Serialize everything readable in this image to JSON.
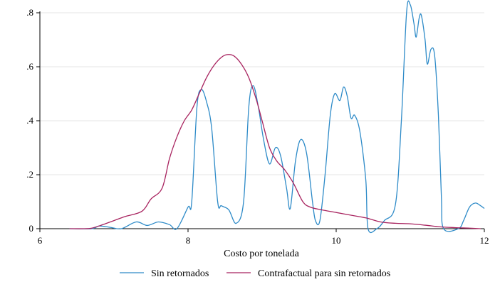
{
  "chart_data": {
    "type": "line",
    "title": "",
    "xlabel": "Costo por tonelada",
    "ylabel": "",
    "xlim": [
      6,
      12
    ],
    "ylim": [
      0,
      0.8
    ],
    "xticks": [
      6,
      8,
      10,
      12
    ],
    "xtick_labels": [
      "6",
      "8",
      "10",
      "12"
    ],
    "yticks": [
      0,
      0.2,
      0.4,
      0.6,
      0.8
    ],
    "ytick_labels": [
      "0",
      ".2",
      ".4",
      ".6",
      ".8"
    ],
    "grid": true,
    "legend_position": "bottom",
    "series": [
      {
        "name": "Sin retornados",
        "color": "#2e8bc8",
        "points": [
          [
            6.4,
            0.0
          ],
          [
            6.7,
            0.0
          ],
          [
            6.8,
            0.01
          ],
          [
            6.95,
            0.005
          ],
          [
            7.1,
            0.0
          ],
          [
            7.3,
            0.025
          ],
          [
            7.45,
            0.012
          ],
          [
            7.6,
            0.025
          ],
          [
            7.75,
            0.015
          ],
          [
            7.85,
            0.0
          ],
          [
            8.0,
            0.08
          ],
          [
            8.05,
            0.1
          ],
          [
            8.12,
            0.45
          ],
          [
            8.18,
            0.515
          ],
          [
            8.25,
            0.47
          ],
          [
            8.32,
            0.37
          ],
          [
            8.4,
            0.1
          ],
          [
            8.45,
            0.085
          ],
          [
            8.55,
            0.07
          ],
          [
            8.65,
            0.02
          ],
          [
            8.75,
            0.1
          ],
          [
            8.82,
            0.45
          ],
          [
            8.88,
            0.53
          ],
          [
            8.95,
            0.45
          ],
          [
            9.02,
            0.33
          ],
          [
            9.1,
            0.24
          ],
          [
            9.18,
            0.3
          ],
          [
            9.25,
            0.27
          ],
          [
            9.33,
            0.15
          ],
          [
            9.38,
            0.075
          ],
          [
            9.45,
            0.25
          ],
          [
            9.52,
            0.33
          ],
          [
            9.6,
            0.28
          ],
          [
            9.68,
            0.1
          ],
          [
            9.72,
            0.03
          ],
          [
            9.78,
            0.03
          ],
          [
            9.85,
            0.2
          ],
          [
            9.92,
            0.42
          ],
          [
            9.98,
            0.5
          ],
          [
            10.05,
            0.475
          ],
          [
            10.1,
            0.525
          ],
          [
            10.15,
            0.49
          ],
          [
            10.2,
            0.41
          ],
          [
            10.25,
            0.42
          ],
          [
            10.32,
            0.36
          ],
          [
            10.4,
            0.18
          ],
          [
            10.43,
            0.0
          ],
          [
            10.55,
            0.0
          ],
          [
            10.65,
            0.03
          ],
          [
            10.8,
            0.09
          ],
          [
            10.88,
            0.4
          ],
          [
            10.95,
            0.8
          ],
          [
            11.0,
            0.83
          ],
          [
            11.05,
            0.76
          ],
          [
            11.08,
            0.71
          ],
          [
            11.12,
            0.78
          ],
          [
            11.15,
            0.79
          ],
          [
            11.2,
            0.7
          ],
          [
            11.23,
            0.61
          ],
          [
            11.28,
            0.665
          ],
          [
            11.33,
            0.64
          ],
          [
            11.38,
            0.42
          ],
          [
            11.42,
            0.12
          ],
          [
            11.45,
            0.0
          ],
          [
            11.65,
            0.0
          ],
          [
            11.72,
            0.03
          ],
          [
            11.8,
            0.08
          ],
          [
            11.88,
            0.095
          ],
          [
            11.95,
            0.085
          ],
          [
            12.0,
            0.075
          ]
        ]
      },
      {
        "name": "Contrafactual para sin retornados",
        "color": "#a8235f",
        "points": [
          [
            6.4,
            0.0
          ],
          [
            6.6,
            0.0
          ],
          [
            6.7,
            0.002
          ],
          [
            6.85,
            0.015
          ],
          [
            7.0,
            0.03
          ],
          [
            7.15,
            0.045
          ],
          [
            7.38,
            0.065
          ],
          [
            7.5,
            0.11
          ],
          [
            7.65,
            0.15
          ],
          [
            7.75,
            0.26
          ],
          [
            7.85,
            0.34
          ],
          [
            7.95,
            0.4
          ],
          [
            8.05,
            0.44
          ],
          [
            8.15,
            0.5
          ],
          [
            8.25,
            0.56
          ],
          [
            8.35,
            0.605
          ],
          [
            8.45,
            0.635
          ],
          [
            8.53,
            0.645
          ],
          [
            8.62,
            0.64
          ],
          [
            8.72,
            0.61
          ],
          [
            8.82,
            0.56
          ],
          [
            8.92,
            0.48
          ],
          [
            9.0,
            0.4
          ],
          [
            9.1,
            0.3
          ],
          [
            9.2,
            0.25
          ],
          [
            9.3,
            0.22
          ],
          [
            9.42,
            0.17
          ],
          [
            9.55,
            0.1
          ],
          [
            9.65,
            0.08
          ],
          [
            9.8,
            0.07
          ],
          [
            10.0,
            0.06
          ],
          [
            10.2,
            0.05
          ],
          [
            10.4,
            0.04
          ],
          [
            10.6,
            0.025
          ],
          [
            10.8,
            0.02
          ],
          [
            11.0,
            0.018
          ],
          [
            11.2,
            0.013
          ],
          [
            11.4,
            0.007
          ],
          [
            11.6,
            0.004
          ],
          [
            11.8,
            0.002
          ],
          [
            11.95,
            0.0
          ]
        ]
      }
    ]
  }
}
